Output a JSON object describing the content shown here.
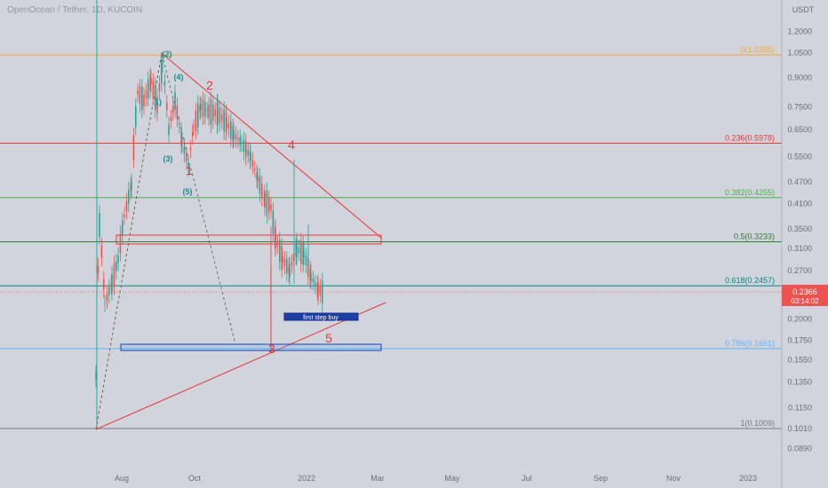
{
  "header": {
    "title": "OpenOcean / Tether, 1D, KUCOIN"
  },
  "chart_data": {
    "type": "candlestick",
    "y_axis": {
      "unit": "USDT",
      "scale": "log",
      "ticks": [
        "1.2000",
        "1.0500",
        "0.9000",
        "0.7500",
        "0.6500",
        "0.5500",
        "0.4700",
        "0.4100",
        "0.3500",
        "0.3100",
        "0.2700",
        "0.2000",
        "0.1750",
        "0.1550",
        "0.1350",
        "0.1150",
        "0.1010",
        "0.0890"
      ],
      "tick_values": [
        1.2,
        1.05,
        0.9,
        0.75,
        0.65,
        0.55,
        0.47,
        0.41,
        0.35,
        0.31,
        0.27,
        0.2,
        0.175,
        0.155,
        0.135,
        0.115,
        0.101,
        0.089
      ]
    },
    "x_axis": {
      "ticks": [
        "Aug",
        "Oct",
        "2022",
        "Mar",
        "May",
        "Jul",
        "Sep",
        "Nov",
        "2023"
      ]
    },
    "last_price": {
      "value": "0.2366",
      "countdown": "03:14:02"
    },
    "fib_levels": [
      {
        "label": "0(1.0355)",
        "value": 1.0355,
        "color": "#f5a623"
      },
      {
        "label": "0.236(0.5978)",
        "value": 0.5978,
        "color": "#e53935"
      },
      {
        "label": "0.382(0.4255)",
        "value": 0.4255,
        "color": "#4caf50"
      },
      {
        "label": "0.5(0.3233)",
        "value": 0.3233,
        "color": "#2e7d32"
      },
      {
        "label": "0.618(0.2457)",
        "value": 0.2457,
        "color": "#00897b"
      },
      {
        "label": "0.786(0.1661)",
        "value": 0.1661,
        "color": "#64b5f6"
      },
      {
        "label": "1(0.1009)",
        "value": 0.1009,
        "color": "#787b86"
      }
    ],
    "wave_labels": [
      "2",
      "4",
      "3",
      "5",
      "1"
    ],
    "subwave_labels": [
      "(2)",
      "(4)",
      "(3)",
      "(5)",
      "1)"
    ],
    "annotation": "first step buy",
    "colors": {
      "up": "#26a69a",
      "down": "#ef5350",
      "background": "#d1d4dc",
      "price_tag": "#ef5350",
      "box": "#1e3fa8"
    }
  }
}
